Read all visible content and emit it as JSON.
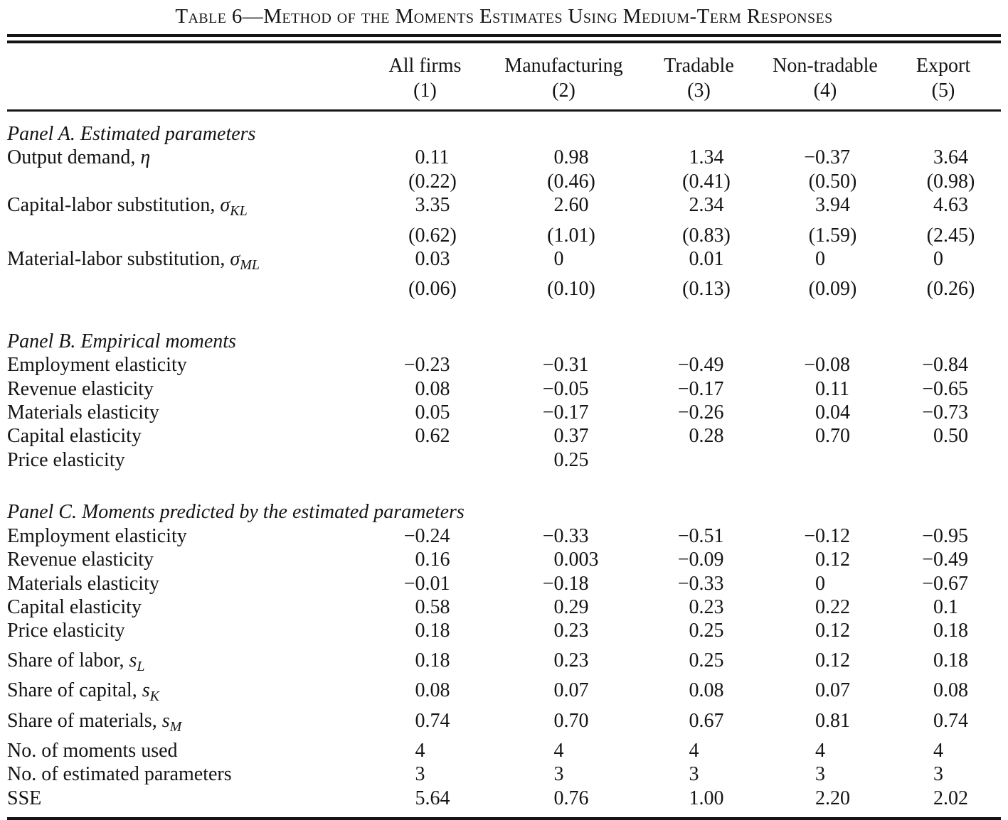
{
  "title": "Table 6—Method of the Moments Estimates Using Medium-Term Responses",
  "colors": {
    "text": "#141414",
    "background": "#ffffff",
    "rule": "#141414"
  },
  "columns": [
    {
      "label": "All firms",
      "number": "(1)"
    },
    {
      "label": "Manufacturing",
      "number": "(2)"
    },
    {
      "label": "Tradable",
      "number": "(3)"
    },
    {
      "label": "Non-tradable",
      "number": "(4)"
    },
    {
      "label": "Export",
      "number": "(5)"
    }
  ],
  "panels": [
    {
      "heading": "Panel A. Estimated parameters",
      "rows": [
        {
          "label": {
            "text": "Output demand, ",
            "math": "η",
            "sub": ""
          },
          "cells": [
            "0.11",
            "0.98",
            "1.34",
            "−0.37",
            "3.64"
          ]
        },
        {
          "label": null,
          "cells": [
            "(0.22)",
            "(0.46)",
            "(0.41)",
            "(0.50)",
            "(0.98)"
          ]
        },
        {
          "label": {
            "text": "Capital-labor substitution, ",
            "math": "σ",
            "sub": "KL"
          },
          "cells": [
            "3.35",
            "2.60",
            "2.34",
            "3.94",
            "4.63"
          ]
        },
        {
          "label": null,
          "cells": [
            "(0.62)",
            "(1.01)",
            "(0.83)",
            "(1.59)",
            "(2.45)"
          ]
        },
        {
          "label": {
            "text": "Material-labor substitution, ",
            "math": "σ",
            "sub": "ML"
          },
          "cells": [
            "0.03",
            "0",
            "0.01",
            "0",
            "0"
          ]
        },
        {
          "label": null,
          "cells": [
            "(0.06)",
            "(0.10)",
            "(0.13)",
            "(0.09)",
            "(0.26)"
          ]
        }
      ]
    },
    {
      "heading": "Panel B. Empirical moments",
      "rows": [
        {
          "label": {
            "text": "Employment elasticity"
          },
          "cells": [
            "−0.23",
            "−0.31",
            "−0.49",
            "−0.08",
            "−0.84"
          ]
        },
        {
          "label": {
            "text": "Revenue elasticity"
          },
          "cells": [
            "0.08",
            "−0.05",
            "−0.17",
            "0.11",
            "−0.65"
          ]
        },
        {
          "label": {
            "text": "Materials elasticity"
          },
          "cells": [
            "0.05",
            "−0.17",
            "−0.26",
            "0.04",
            "−0.73"
          ]
        },
        {
          "label": {
            "text": "Capital elasticity"
          },
          "cells": [
            "0.62",
            "0.37",
            "0.28",
            "0.70",
            "0.50"
          ]
        },
        {
          "label": {
            "text": "Price elasticity"
          },
          "cells": [
            "",
            "0.25",
            "",
            "",
            ""
          ]
        }
      ]
    },
    {
      "heading": "Panel C. Moments predicted by the estimated parameters",
      "rows": [
        {
          "label": {
            "text": "Employment elasticity"
          },
          "cells": [
            "−0.24",
            "−0.33",
            "−0.51",
            "−0.12",
            "−0.95"
          ]
        },
        {
          "label": {
            "text": "Revenue elasticity"
          },
          "cells": [
            "0.16",
            "0.003",
            "−0.09",
            "0.12",
            "−0.49"
          ]
        },
        {
          "label": {
            "text": "Materials elasticity"
          },
          "cells": [
            "−0.01",
            "−0.18",
            "−0.33",
            "0",
            "−0.67"
          ]
        },
        {
          "label": {
            "text": "Capital elasticity"
          },
          "cells": [
            "0.58",
            "0.29",
            "0.23",
            "0.22",
            "0.1"
          ]
        },
        {
          "label": {
            "text": "Price elasticity"
          },
          "cells": [
            "0.18",
            "0.23",
            "0.25",
            "0.12",
            "0.18"
          ]
        }
      ]
    },
    {
      "heading": null,
      "rows": [
        {
          "label": {
            "text": "Share of labor, ",
            "math": "s",
            "sub": "L"
          },
          "cells": [
            "0.18",
            "0.23",
            "0.25",
            "0.12",
            "0.18"
          ]
        },
        {
          "label": {
            "text": "Share of capital, ",
            "math": "s",
            "sub": "K"
          },
          "cells": [
            "0.08",
            "0.07",
            "0.08",
            "0.07",
            "0.08"
          ]
        },
        {
          "label": {
            "text": "Share of materials, ",
            "math": "s",
            "sub": "M"
          },
          "cells": [
            "0.74",
            "0.70",
            "0.67",
            "0.81",
            "0.74"
          ]
        },
        {
          "label": {
            "text": "No. of moments used"
          },
          "cells": [
            "4",
            "4",
            "4",
            "4",
            "4"
          ]
        },
        {
          "label": {
            "text": "No. of estimated parameters"
          },
          "cells": [
            "3",
            "3",
            "3",
            "3",
            "3"
          ]
        },
        {
          "label": {
            "text": "SSE"
          },
          "cells": [
            "5.64",
            "0.76",
            "1.00",
            "2.20",
            "2.02"
          ]
        }
      ]
    }
  ]
}
